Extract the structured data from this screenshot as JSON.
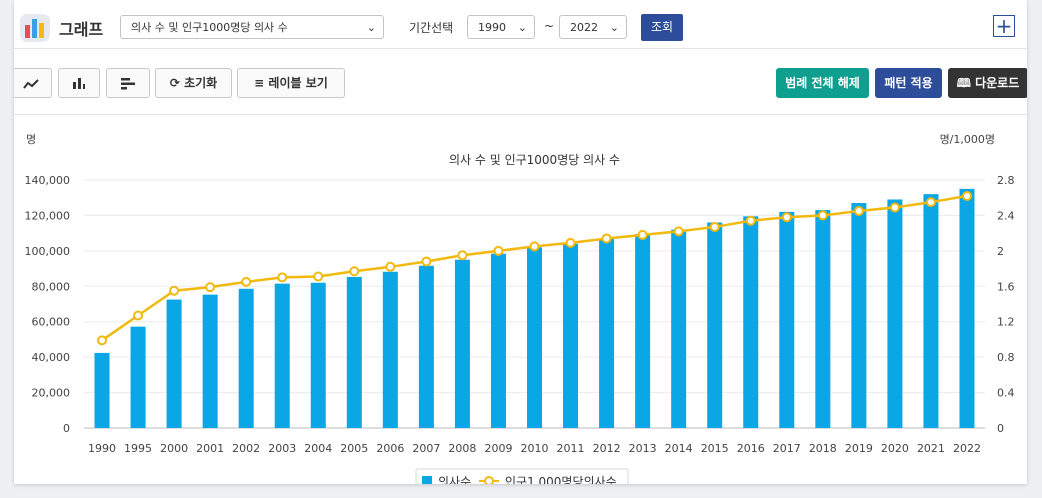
{
  "header": {
    "title": "그래프",
    "indicator_select": "의사 수 및 인구1000명당 의사 수",
    "period_label": "기간선택",
    "start_year": "1990",
    "range_sep": "~",
    "end_year": "2022",
    "query_label": "조회",
    "add_label": "+"
  },
  "toolbar": {
    "reset_label": "초기화",
    "label_view_label": "레이블 보기",
    "legend_clear_label": "범례 전체 해제",
    "pattern_label": "패턴 적용",
    "download_label": "다운로드"
  },
  "colors": {
    "bar": "#0aa6e6",
    "line": "#f2b90f",
    "teal_button": "#0e9f8f",
    "navy_button": "#2d4c9a",
    "dark_button": "#333333"
  },
  "icons": {
    "line_chart": "line-chart-icon",
    "bar_chart": "bar-chart-icon",
    "horizontal_bar": "horizontal-bar-icon",
    "refresh": "refresh-icon",
    "list": "list-icon",
    "book": "book-icon"
  },
  "chart_data": {
    "type": "bar",
    "title": "의사 수 및 인구1000명당 의사 수",
    "y_unit_left": "명",
    "y_unit_right": "명/1,000명",
    "categories": [
      "1990",
      "1995",
      "2000",
      "2001",
      "2002",
      "2003",
      "2004",
      "2005",
      "2006",
      "2007",
      "2008",
      "2009",
      "2010",
      "2011",
      "2012",
      "2013",
      "2014",
      "2015",
      "2016",
      "2017",
      "2018",
      "2019",
      "2020",
      "2021",
      "2022"
    ],
    "ylim": [
      0,
      140000
    ],
    "y2lim": [
      0,
      2.8
    ],
    "yticks": [
      "0",
      "20,000",
      "40,000",
      "60,000",
      "80,000",
      "100,000",
      "120,000",
      "140,000"
    ],
    "y2ticks": [
      "0",
      "0.4",
      "0.8",
      "1.2",
      "1.6",
      "2",
      "2.4",
      "2.8"
    ],
    "series": [
      {
        "name": "의사수",
        "type": "bar",
        "axis": "left",
        "values": [
          42400,
          57200,
          72500,
          75300,
          78600,
          81500,
          82000,
          85300,
          88200,
          91600,
          95000,
          98400,
          102000,
          104000,
          107000,
          109500,
          112000,
          116000,
          119500,
          122000,
          123000,
          127000,
          129000,
          132000,
          135000
        ]
      },
      {
        "name": "인구1,000명당의사수",
        "type": "line",
        "axis": "right",
        "values": [
          0.99,
          1.27,
          1.55,
          1.59,
          1.65,
          1.7,
          1.71,
          1.77,
          1.82,
          1.88,
          1.95,
          2.0,
          2.05,
          2.09,
          2.14,
          2.18,
          2.22,
          2.27,
          2.34,
          2.38,
          2.4,
          2.45,
          2.49,
          2.55,
          2.62
        ]
      }
    ],
    "legend_position": "bottom",
    "grid": true
  }
}
